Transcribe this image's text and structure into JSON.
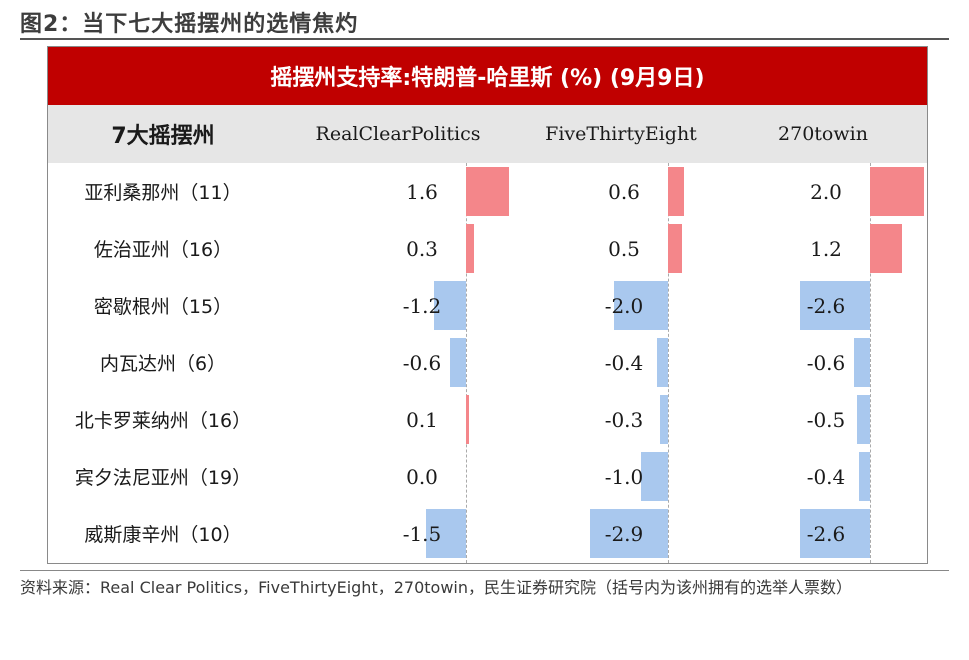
{
  "figure_title": "图2：当下七大摇摆州的选情焦灼",
  "chart_data": {
    "type": "table",
    "title": "摇摆州支持率:特朗普-哈里斯 (%) (9月9日)",
    "row_header": "7大摇摆州",
    "columns": [
      "RealClearPolitics",
      "FiveThirtyEight",
      "270towin"
    ],
    "states": [
      "亚利桑那州（11）",
      "佐治亚州（16）",
      "密歇根州（15）",
      "内瓦达州（6）",
      "北卡罗莱纳州（16）",
      "宾夕法尼亚州（19）",
      "威斯康辛州（10）"
    ],
    "series": [
      {
        "name": "RealClearPolitics",
        "values": [
          1.6,
          0.3,
          -1.2,
          -0.6,
          0.1,
          0.0,
          -1.5
        ]
      },
      {
        "name": "FiveThirtyEight",
        "values": [
          0.6,
          0.5,
          -2.0,
          -0.4,
          -0.3,
          -1.0,
          -2.9
        ]
      },
      {
        "name": "270towin",
        "values": [
          2.0,
          1.2,
          -2.6,
          -0.6,
          -0.5,
          -0.4,
          -2.6
        ]
      }
    ],
    "colors": {
      "positive": "#f4868a",
      "negative": "#a9c8ee",
      "banner": "#c00000",
      "header": "#e6e6e6"
    }
  },
  "source_note": "资料来源：Real Clear Politics，FiveThirtyEight，270towin，民生证券研究院（括号内为该州拥有的选举人票数）"
}
